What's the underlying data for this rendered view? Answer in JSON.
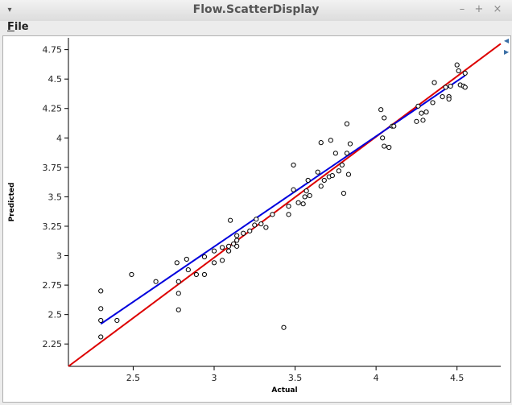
{
  "window": {
    "title": "Flow.ScatterDisplay",
    "controls": {
      "minimize": "–",
      "maximize": "+",
      "close": "×"
    }
  },
  "menu": {
    "file_prefix": "F",
    "file_rest": "ile"
  },
  "chart_data": {
    "type": "scatter",
    "title": "",
    "xlabel": "Actual",
    "ylabel": "Predicted",
    "xlim": [
      2.1,
      4.77
    ],
    "ylim": [
      2.06,
      4.85
    ],
    "x_ticks": [
      {
        "v": 2.5,
        "label": "2.5"
      },
      {
        "v": 3.0,
        "label": "3"
      },
      {
        "v": 3.5,
        "label": "3.5"
      },
      {
        "v": 4.0,
        "label": "4"
      },
      {
        "v": 4.5,
        "label": "4.5"
      }
    ],
    "y_ticks": [
      {
        "v": 2.25,
        "label": "2.25"
      },
      {
        "v": 2.5,
        "label": "2.5"
      },
      {
        "v": 2.75,
        "label": "2.75"
      },
      {
        "v": 3.0,
        "label": "3"
      },
      {
        "v": 3.25,
        "label": "3.25"
      },
      {
        "v": 3.5,
        "label": "3.5"
      },
      {
        "v": 3.75,
        "label": "3.75"
      },
      {
        "v": 4.0,
        "label": "4"
      },
      {
        "v": 4.25,
        "label": "4.25"
      },
      {
        "v": 4.5,
        "label": "4.5"
      },
      {
        "v": 4.75,
        "label": "4.75"
      }
    ],
    "points": [
      [
        2.3,
        2.7
      ],
      [
        2.3,
        2.55
      ],
      [
        2.3,
        2.45
      ],
      [
        2.3,
        2.31
      ],
      [
        2.4,
        2.45
      ],
      [
        2.49,
        2.84
      ],
      [
        2.64,
        2.78
      ],
      [
        2.77,
        2.94
      ],
      [
        2.78,
        2.78
      ],
      [
        2.78,
        2.68
      ],
      [
        2.78,
        2.54
      ],
      [
        2.83,
        2.97
      ],
      [
        2.84,
        2.88
      ],
      [
        2.89,
        2.84
      ],
      [
        2.94,
        2.99
      ],
      [
        2.94,
        2.84
      ],
      [
        3.0,
        2.94
      ],
      [
        3.0,
        3.04
      ],
      [
        3.05,
        2.96
      ],
      [
        3.05,
        3.07
      ],
      [
        3.09,
        3.04
      ],
      [
        3.09,
        3.08
      ],
      [
        3.1,
        3.3
      ],
      [
        3.12,
        3.1
      ],
      [
        3.14,
        3.13
      ],
      [
        3.14,
        3.17
      ],
      [
        3.14,
        3.08
      ],
      [
        3.18,
        3.19
      ],
      [
        3.22,
        3.21
      ],
      [
        3.25,
        3.26
      ],
      [
        3.26,
        3.31
      ],
      [
        3.29,
        3.27
      ],
      [
        3.32,
        3.24
      ],
      [
        3.36,
        3.35
      ],
      [
        3.43,
        2.39
      ],
      [
        3.46,
        3.35
      ],
      [
        3.46,
        3.42
      ],
      [
        3.49,
        3.77
      ],
      [
        3.49,
        3.56
      ],
      [
        3.52,
        3.45
      ],
      [
        3.55,
        3.44
      ],
      [
        3.56,
        3.5
      ],
      [
        3.57,
        3.55
      ],
      [
        3.58,
        3.64
      ],
      [
        3.59,
        3.51
      ],
      [
        3.64,
        3.71
      ],
      [
        3.66,
        3.96
      ],
      [
        3.66,
        3.59
      ],
      [
        3.68,
        3.64
      ],
      [
        3.71,
        3.67
      ],
      [
        3.72,
        3.98
      ],
      [
        3.73,
        3.68
      ],
      [
        3.75,
        3.87
      ],
      [
        3.77,
        3.72
      ],
      [
        3.79,
        3.77
      ],
      [
        3.8,
        3.53
      ],
      [
        3.82,
        3.87
      ],
      [
        3.82,
        4.12
      ],
      [
        3.83,
        3.69
      ],
      [
        3.84,
        3.95
      ],
      [
        4.03,
        4.24
      ],
      [
        4.04,
        4.0
      ],
      [
        4.05,
        3.93
      ],
      [
        4.05,
        4.17
      ],
      [
        4.08,
        3.92
      ],
      [
        4.1,
        4.1
      ],
      [
        4.11,
        4.1
      ],
      [
        4.25,
        4.14
      ],
      [
        4.26,
        4.27
      ],
      [
        4.28,
        4.21
      ],
      [
        4.29,
        4.15
      ],
      [
        4.31,
        4.22
      ],
      [
        4.35,
        4.3
      ],
      [
        4.36,
        4.47
      ],
      [
        4.41,
        4.35
      ],
      [
        4.43,
        4.43
      ],
      [
        4.45,
        4.35
      ],
      [
        4.45,
        4.33
      ],
      [
        4.46,
        4.44
      ],
      [
        4.5,
        4.62
      ],
      [
        4.51,
        4.57
      ],
      [
        4.52,
        4.45
      ],
      [
        4.54,
        4.44
      ],
      [
        4.55,
        4.55
      ],
      [
        4.55,
        4.43
      ]
    ],
    "lines": [
      {
        "color": "#dd0000",
        "x": [
          2.1,
          4.77
        ],
        "y": [
          2.06,
          4.8
        ]
      },
      {
        "color": "#0000dd",
        "x": [
          2.3,
          4.55
        ],
        "y": [
          2.42,
          4.53
        ]
      }
    ],
    "colors": {
      "points": "#000000",
      "axis": "#000000"
    }
  }
}
